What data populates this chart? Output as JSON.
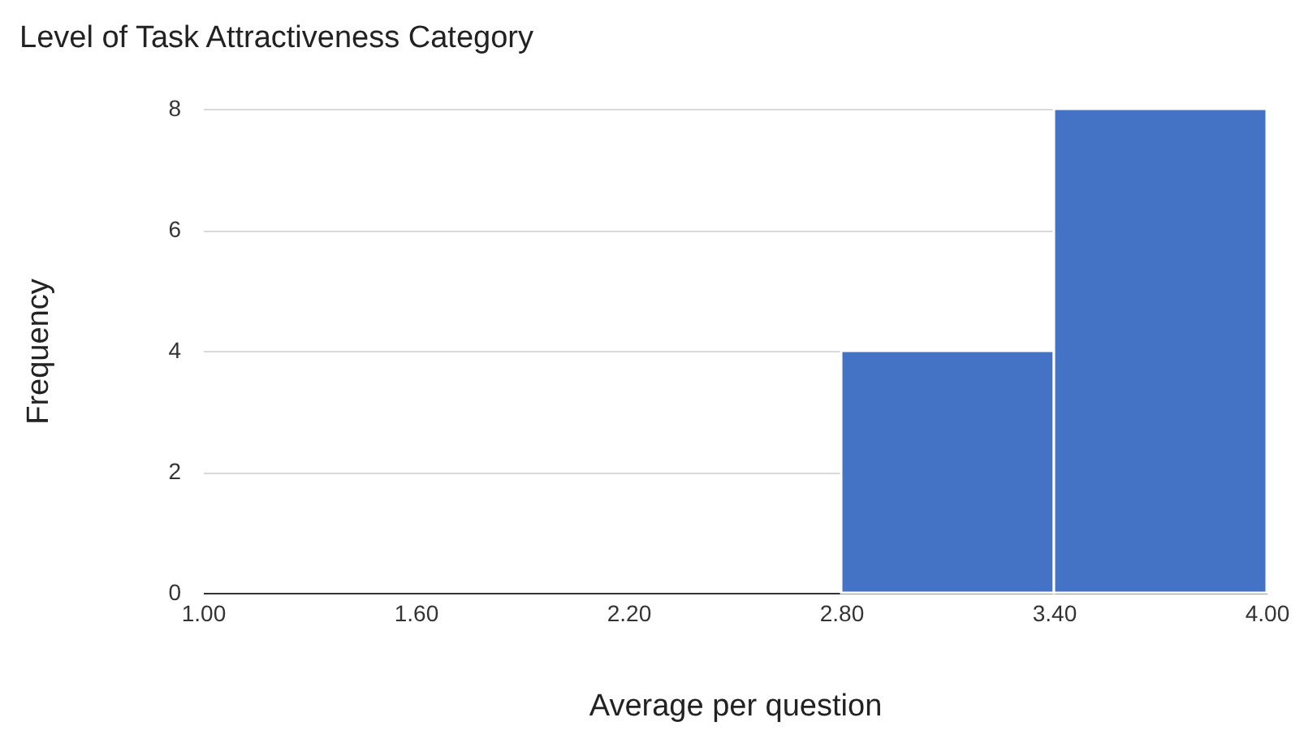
{
  "chart_data": {
    "type": "histogram",
    "title": "Level of Task Attractiveness Category",
    "xlabel": "Average per question",
    "ylabel": "Frequency",
    "bins": [
      1.0,
      1.6,
      2.2,
      2.8,
      3.4,
      4.0
    ],
    "values": [
      0,
      0,
      0,
      4,
      8
    ],
    "color": "#4472c4",
    "xlim": [
      1.0,
      4.0
    ],
    "xticks": [
      {
        "value": 1.0,
        "label": "1.00"
      },
      {
        "value": 1.6,
        "label": "1.60"
      },
      {
        "value": 2.2,
        "label": "2.20"
      },
      {
        "value": 2.8,
        "label": "2.80"
      },
      {
        "value": 3.4,
        "label": "3.40"
      },
      {
        "value": 4.0,
        "label": "4.00"
      }
    ],
    "ylim": [
      0,
      8
    ],
    "yticks": [
      0,
      2,
      4,
      6,
      8
    ],
    "grid": "y"
  }
}
